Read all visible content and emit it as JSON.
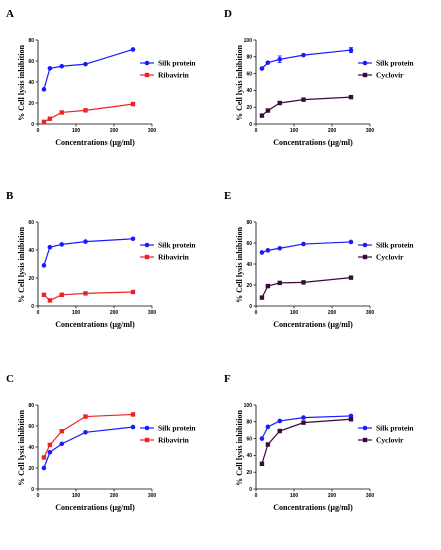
{
  "colors": {
    "silk": "#1a1aff",
    "ribavirin": "#ee2222",
    "cyclovir": "#3a0a3a",
    "axis": "#000000"
  },
  "chart_data": [
    {
      "panel": "A",
      "type": "line",
      "xlabel": "Concentrations   (µg/ml)",
      "ylabel": "% Cell lysis inhibition",
      "xlim": [
        0,
        300
      ],
      "ylim": [
        0,
        80
      ],
      "xticks": [
        0,
        100,
        200,
        300
      ],
      "yticks": [
        0,
        20,
        40,
        60,
        80
      ],
      "legend_position": "right",
      "series": [
        {
          "name": "Silk protein",
          "color": "silk",
          "marker": "circle",
          "x": [
            15.6,
            31.25,
            62.5,
            125,
            250
          ],
          "y": [
            33,
            53,
            55,
            57,
            71
          ]
        },
        {
          "name": "Ribavirin",
          "color": "ribavirin",
          "marker": "square",
          "x": [
            15.6,
            31.25,
            62.5,
            125,
            250
          ],
          "y": [
            2,
            5,
            11,
            13,
            19
          ]
        }
      ]
    },
    {
      "panel": "B",
      "type": "line",
      "xlabel": "Concentrations   (µg/ml)",
      "ylabel": "% Cell lysis inhibition",
      "xlim": [
        0,
        300
      ],
      "ylim": [
        0,
        60
      ],
      "xticks": [
        0,
        100,
        200,
        300
      ],
      "yticks": [
        0,
        20,
        40,
        60
      ],
      "legend_position": "right",
      "series": [
        {
          "name": "Silk protein",
          "color": "silk",
          "marker": "circle",
          "x": [
            15.6,
            31.25,
            62.5,
            125,
            250
          ],
          "y": [
            29,
            42,
            44,
            46,
            48
          ]
        },
        {
          "name": "Ribavirin",
          "color": "ribavirin",
          "marker": "square",
          "x": [
            15.6,
            31.25,
            62.5,
            125,
            250
          ],
          "y": [
            8,
            4,
            8,
            9,
            10
          ]
        }
      ]
    },
    {
      "panel": "C",
      "type": "line",
      "xlabel": "Concentrations   (µg/ml)",
      "ylabel": "% Cell lysis inhibition",
      "xlim": [
        0,
        300
      ],
      "ylim": [
        0,
        80
      ],
      "xticks": [
        0,
        100,
        200,
        300
      ],
      "yticks": [
        0,
        20,
        40,
        60,
        80
      ],
      "legend_position": "right",
      "series": [
        {
          "name": "Silk protein",
          "color": "silk",
          "marker": "circle",
          "x": [
            15.6,
            31.25,
            62.5,
            125,
            250
          ],
          "y": [
            20,
            35,
            43,
            54,
            59
          ]
        },
        {
          "name": "Ribavirin",
          "color": "ribavirin",
          "marker": "square",
          "x": [
            15.6,
            31.25,
            62.5,
            125,
            250
          ],
          "y": [
            30,
            42,
            55,
            69,
            71
          ]
        }
      ]
    },
    {
      "panel": "D",
      "type": "line",
      "xlabel": "Concentrations   (µg/ml)",
      "ylabel": "% Cell lysis inhibition",
      "xlim": [
        0,
        300
      ],
      "ylim": [
        0,
        100
      ],
      "xticks": [
        0,
        100,
        200,
        300
      ],
      "yticks": [
        0,
        20,
        40,
        60,
        80,
        100
      ],
      "legend_position": "right",
      "series": [
        {
          "name": "Silk protein",
          "color": "silk",
          "marker": "circle",
          "x": [
            15.6,
            31.25,
            62.5,
            125,
            250
          ],
          "y": [
            66,
            73,
            77,
            82,
            88
          ],
          "yerr": [
            0,
            0,
            4,
            0,
            3
          ]
        },
        {
          "name": "Cyclovir",
          "color": "cyclovir",
          "marker": "square",
          "x": [
            15.6,
            31.25,
            62.5,
            125,
            250
          ],
          "y": [
            10,
            16,
            25,
            29,
            32
          ]
        }
      ]
    },
    {
      "panel": "E",
      "type": "line",
      "xlabel": "Concentrations   (µg/ml)",
      "ylabel": "% Cell lysis inhibition",
      "xlim": [
        0,
        300
      ],
      "ylim": [
        0,
        80
      ],
      "xticks": [
        0,
        100,
        200,
        300
      ],
      "yticks": [
        0,
        20,
        40,
        60,
        80
      ],
      "legend_position": "right",
      "series": [
        {
          "name": "Silk protein",
          "color": "silk",
          "marker": "circle",
          "x": [
            15.6,
            31.25,
            62.5,
            125,
            250
          ],
          "y": [
            51,
            53,
            55,
            59,
            61
          ]
        },
        {
          "name": "Cyclovir",
          "color": "cyclovir",
          "marker": "square",
          "x": [
            15.6,
            31.25,
            62.5,
            125,
            250
          ],
          "y": [
            8,
            19,
            22,
            22.5,
            27
          ]
        }
      ]
    },
    {
      "panel": "F",
      "type": "line",
      "xlabel": "Concentrations   (µg/ml)",
      "ylabel": "% Cell lysis inhibition",
      "xlim": [
        0,
        300
      ],
      "ylim": [
        0,
        100
      ],
      "xticks": [
        0,
        100,
        200,
        300
      ],
      "yticks": [
        0,
        20,
        40,
        60,
        80,
        100
      ],
      "legend_position": "right",
      "series": [
        {
          "name": "Silk protein",
          "color": "silk",
          "marker": "circle",
          "x": [
            15.6,
            31.25,
            62.5,
            125,
            250
          ],
          "y": [
            60,
            74,
            81,
            85,
            87
          ]
        },
        {
          "name": "Cyclovir",
          "color": "cyclovir",
          "marker": "square",
          "x": [
            15.6,
            31.25,
            62.5,
            125,
            250
          ],
          "y": [
            30,
            53,
            69,
            79,
            83
          ]
        }
      ]
    }
  ]
}
